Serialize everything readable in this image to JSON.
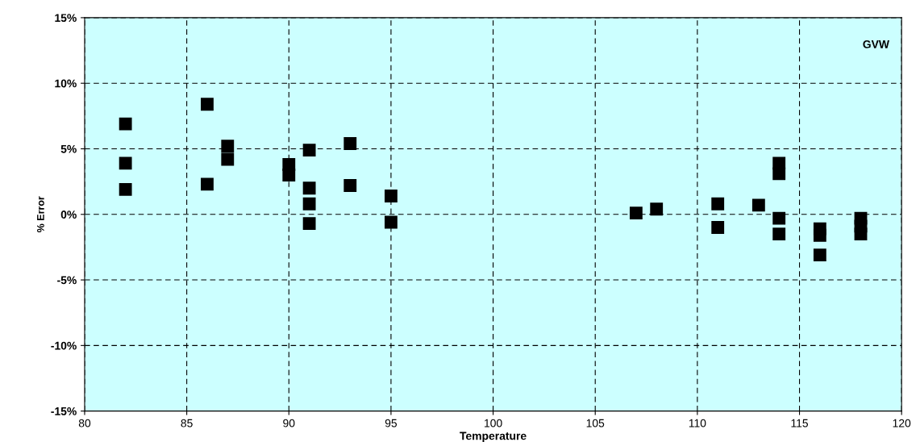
{
  "chart_data": {
    "type": "scatter",
    "xlabel": "Temperature",
    "ylabel": "% Error",
    "annotations": [
      "GVW"
    ],
    "x": [
      82,
      82,
      82,
      86,
      86,
      87,
      87,
      90,
      90,
      91,
      91,
      91,
      91,
      93,
      93,
      95,
      95,
      107,
      108,
      111,
      111,
      113,
      114,
      114,
      114,
      114,
      116,
      116,
      116,
      118,
      118,
      118
    ],
    "values": [
      6.9,
      3.9,
      1.9,
      8.4,
      2.3,
      5.2,
      4.2,
      3.8,
      3.0,
      4.9,
      2.0,
      0.8,
      -0.7,
      5.4,
      2.2,
      1.4,
      -0.6,
      0.1,
      0.4,
      0.8,
      -1.0,
      0.7,
      3.9,
      3.1,
      -0.3,
      -1.5,
      -1.1,
      -1.6,
      -3.1,
      -0.3,
      -0.9,
      -1.5
    ],
    "color": "#000000",
    "marker": "square",
    "grid": true,
    "xlim": [
      80,
      120
    ],
    "xticks": [
      80,
      85,
      90,
      95,
      100,
      105,
      110,
      115,
      120
    ],
    "ylim": [
      -15,
      15
    ],
    "yticks": [
      {
        "value": -15,
        "label": "-15%"
      },
      {
        "value": -10,
        "label": "-10%"
      },
      {
        "value": -5,
        "label": "-5%"
      },
      {
        "value": 0,
        "label": "0%"
      },
      {
        "value": 5,
        "label": "5%"
      },
      {
        "value": 10,
        "label": "10%"
      },
      {
        "value": 15,
        "label": "15%"
      }
    ]
  }
}
